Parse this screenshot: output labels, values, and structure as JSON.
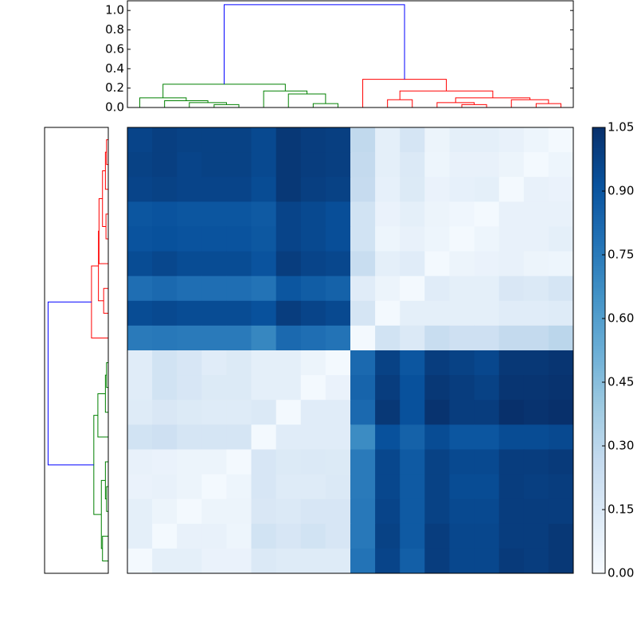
{
  "chart_data": [
    {
      "type": "dendrogram",
      "orientation": "top",
      "ylim": [
        0,
        1.1
      ],
      "yticks": [
        {
          "value": 0,
          "label": "0.0"
        },
        0.2,
        0.4,
        0.6,
        0.8,
        {
          "value": 1,
          "label": "1.0"
        }
      ],
      "merges": [
        [
          3,
          4
        ],
        [
          2,
          18
        ],
        [
          1,
          19
        ],
        [
          0,
          20
        ],
        [
          7,
          8
        ],
        [
          6,
          22
        ],
        [
          5,
          23
        ],
        [
          21,
          24
        ],
        [
          10,
          11
        ],
        [
          13,
          14
        ],
        [
          12,
          27
        ],
        [
          16,
          17
        ],
        [
          15,
          29
        ],
        [
          28,
          30
        ],
        [
          26,
          31
        ],
        [
          9,
          32
        ],
        [
          25,
          33
        ]
      ],
      "heights": [
        0.03,
        0.05,
        0.07,
        0.1,
        0.04,
        0.14,
        0.17,
        0.24,
        0.08,
        0.03,
        0.05,
        0.04,
        0.08,
        0.1,
        0.17,
        0.29,
        1.06
      ],
      "link_colors": [
        "#008000",
        "#008000",
        "#008000",
        "#008000",
        "#008000",
        "#008000",
        "#008000",
        "#008000",
        "#ff0000",
        "#ff0000",
        "#ff0000",
        "#ff0000",
        "#ff0000",
        "#ff0000",
        "#ff0000",
        "#ff0000",
        "#0000ff"
      ]
    },
    {
      "type": "dendrogram",
      "orientation": "left",
      "xlim": [
        0,
        1.1
      ],
      "merges": [
        [
          0,
          1
        ],
        [
          18,
          2
        ],
        [
          3,
          4
        ],
        [
          19,
          20
        ],
        [
          21,
          5
        ],
        [
          6,
          7
        ],
        [
          22,
          23
        ],
        [
          24,
          8
        ],
        [
          9,
          10
        ],
        [
          26,
          11
        ],
        [
          27,
          12
        ],
        [
          14,
          15
        ],
        [
          13,
          29
        ],
        [
          16,
          17
        ],
        [
          30,
          31
        ],
        [
          28,
          32
        ],
        [
          25,
          33
        ]
      ],
      "heights": [
        0.03,
        0.05,
        0.04,
        0.1,
        0.16,
        0.08,
        0.17,
        0.29,
        0.03,
        0.05,
        0.18,
        0.03,
        0.05,
        0.1,
        0.12,
        0.25,
        1.04
      ],
      "link_colors": [
        "#ff0000",
        "#ff0000",
        "#ff0000",
        "#ff0000",
        "#ff0000",
        "#ff0000",
        "#ff0000",
        "#ff0000",
        "#008000",
        "#008000",
        "#008000",
        "#008000",
        "#008000",
        "#008000",
        "#008000",
        "#008000",
        "#0000ff"
      ]
    },
    {
      "type": "heatmap",
      "colormap": "Blues",
      "zlim": [
        0,
        1.05
      ],
      "zticks": [
        {
          "value": 0,
          "label": "0.00"
        },
        {
          "value": 0.15,
          "label": "0.15"
        },
        {
          "value": 0.3,
          "label": "0.30"
        },
        {
          "value": 0.45,
          "label": "0.45"
        },
        {
          "value": 0.6,
          "label": "0.60"
        },
        {
          "value": 0.75,
          "label": "0.75"
        },
        {
          "value": 0.9,
          "label": "0.90"
        },
        {
          "value": 1.05,
          "label": "1.05"
        }
      ],
      "values": [
        [
          0.97,
          0.99,
          0.98,
          0.98,
          0.98,
          0.95,
          1.02,
          1.0,
          0.99,
          0.28,
          0.1,
          0.18,
          0.06,
          0.1,
          0.1,
          0.08,
          0.05,
          0.02
        ],
        [
          0.98,
          0.99,
          0.97,
          0.98,
          0.98,
          0.95,
          1.02,
          1.0,
          0.99,
          0.27,
          0.1,
          0.15,
          0.05,
          0.08,
          0.08,
          0.06,
          0.02,
          0.05
        ],
        [
          0.97,
          0.98,
          0.97,
          0.97,
          0.97,
          0.94,
          1.02,
          0.99,
          0.98,
          0.26,
          0.09,
          0.14,
          0.07,
          0.09,
          0.1,
          0.02,
          0.08,
          0.07
        ],
        [
          0.9,
          0.91,
          0.9,
          0.9,
          0.9,
          0.88,
          0.97,
          0.95,
          0.93,
          0.2,
          0.07,
          0.1,
          0.06,
          0.04,
          0.02,
          0.08,
          0.08,
          0.08
        ],
        [
          0.91,
          0.92,
          0.91,
          0.91,
          0.91,
          0.89,
          0.97,
          0.95,
          0.93,
          0.2,
          0.05,
          0.08,
          0.05,
          0.02,
          0.05,
          0.08,
          0.08,
          0.1
        ],
        [
          0.94,
          0.96,
          0.94,
          0.94,
          0.94,
          0.91,
          1.0,
          0.97,
          0.96,
          0.25,
          0.1,
          0.12,
          0.02,
          0.06,
          0.07,
          0.08,
          0.06,
          0.05
        ],
        [
          0.8,
          0.82,
          0.8,
          0.8,
          0.8,
          0.78,
          0.9,
          0.87,
          0.85,
          0.12,
          0.06,
          0.02,
          0.12,
          0.1,
          0.1,
          0.16,
          0.15,
          0.18
        ],
        [
          0.94,
          0.95,
          0.94,
          0.94,
          0.94,
          0.92,
          1.0,
          0.97,
          0.95,
          0.18,
          0.02,
          0.1,
          0.1,
          0.1,
          0.1,
          0.12,
          0.12,
          0.13
        ],
        [
          0.75,
          0.76,
          0.75,
          0.75,
          0.75,
          0.7,
          0.82,
          0.8,
          0.78,
          0.02,
          0.2,
          0.15,
          0.25,
          0.22,
          0.22,
          0.27,
          0.27,
          0.3
        ],
        [
          0.12,
          0.2,
          0.17,
          0.12,
          0.14,
          0.1,
          0.1,
          0.06,
          0.02,
          0.82,
          0.98,
          0.9,
          1.0,
          0.98,
          0.96,
          1.02,
          1.02,
          1.03
        ],
        [
          0.12,
          0.2,
          0.17,
          0.14,
          0.14,
          0.1,
          0.1,
          0.02,
          0.07,
          0.84,
          1.0,
          0.92,
          1.02,
          1.0,
          0.98,
          1.03,
          1.03,
          1.04
        ],
        [
          0.13,
          0.16,
          0.14,
          0.13,
          0.13,
          0.15,
          0.02,
          0.12,
          0.12,
          0.82,
          1.02,
          0.92,
          1.04,
          1.0,
          1.0,
          1.05,
          1.04,
          1.05
        ],
        [
          0.2,
          0.22,
          0.18,
          0.18,
          0.18,
          0.02,
          0.12,
          0.12,
          0.12,
          0.68,
          0.92,
          0.85,
          0.94,
          0.9,
          0.9,
          0.94,
          0.94,
          0.95
        ],
        [
          0.08,
          0.07,
          0.06,
          0.06,
          0.02,
          0.17,
          0.14,
          0.15,
          0.14,
          0.75,
          0.96,
          0.88,
          0.98,
          0.95,
          0.95,
          1.0,
          1.0,
          1.01
        ],
        [
          0.07,
          0.08,
          0.06,
          0.02,
          0.05,
          0.17,
          0.13,
          0.13,
          0.15,
          0.75,
          0.96,
          0.88,
          0.98,
          0.94,
          0.94,
          1.0,
          0.99,
          1.0
        ],
        [
          0.1,
          0.06,
          0.02,
          0.06,
          0.06,
          0.16,
          0.15,
          0.17,
          0.17,
          0.76,
          0.97,
          0.88,
          0.98,
          0.95,
          0.95,
          1.0,
          1.0,
          1.0
        ],
        [
          0.1,
          0.02,
          0.08,
          0.08,
          0.05,
          0.2,
          0.17,
          0.2,
          0.17,
          0.76,
          0.98,
          0.88,
          1.0,
          0.96,
          0.96,
          1.0,
          1.0,
          1.02
        ],
        [
          0.02,
          0.1,
          0.1,
          0.07,
          0.07,
          0.15,
          0.13,
          0.13,
          0.13,
          0.78,
          0.97,
          0.86,
          1.0,
          0.96,
          0.96,
          1.01,
          1.0,
          1.02
        ]
      ]
    }
  ]
}
